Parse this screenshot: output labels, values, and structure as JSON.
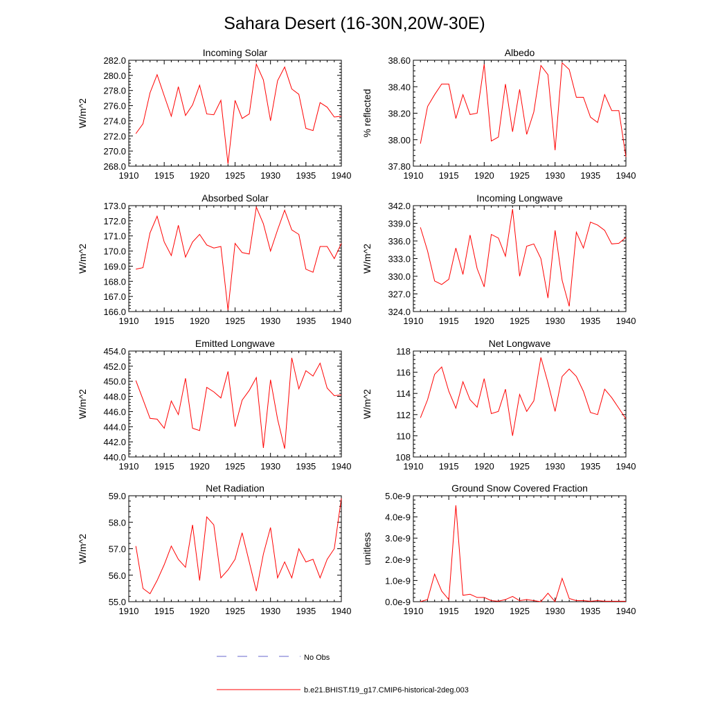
{
  "title": "Sahara Desert (16-30N,20W-30E)",
  "colors": {
    "model": "#ff0000",
    "obs": "#6666cc",
    "axis": "#000000"
  },
  "legend": {
    "obs_label": "No Obs",
    "model_label": "b.e21.BHIST.f19_g17.CMIP6-historical-2deg.003"
  },
  "chart_data": [
    {
      "type": "line",
      "title": "Incoming Solar",
      "ylabel": "W/m^2",
      "xlabel": "",
      "xlim": [
        1910,
        1940
      ],
      "ylim": [
        268.0,
        282.0
      ],
      "xticks": [
        "1910",
        "1915",
        "1920",
        "1925",
        "1930",
        "1935",
        "1940"
      ],
      "yticks": [
        "268.0",
        "270.0",
        "272.0",
        "274.0",
        "276.0",
        "278.0",
        "280.0",
        "282.0"
      ],
      "x": [
        1911,
        1912,
        1913,
        1914,
        1915,
        1916,
        1917,
        1918,
        1919,
        1920,
        1921,
        1922,
        1923,
        1924,
        1925,
        1926,
        1927,
        1928,
        1929,
        1930,
        1931,
        1932,
        1933,
        1934,
        1935,
        1936,
        1937,
        1938,
        1939,
        1940
      ],
      "series": [
        {
          "name": "b.e21.BHIST.f19_g17.CMIP6-historical-2deg.003",
          "values": [
            272.3,
            273.6,
            277.7,
            280.1,
            277.3,
            274.6,
            278.5,
            274.7,
            276.1,
            278.7,
            274.9,
            274.8,
            276.7,
            268.3,
            276.7,
            274.3,
            274.9,
            281.5,
            279.4,
            274.0,
            279.3,
            281.1,
            278.2,
            277.5,
            273.0,
            272.7,
            276.4,
            275.8,
            274.5,
            274.6
          ]
        }
      ]
    },
    {
      "type": "line",
      "title": "Albedo",
      "ylabel": "% reflected",
      "xlabel": "",
      "xlim": [
        1910,
        1940
      ],
      "ylim": [
        37.8,
        38.6
      ],
      "xticks": [
        "1910",
        "1915",
        "1920",
        "1925",
        "1930",
        "1935",
        "1940"
      ],
      "yticks": [
        "37.80",
        "38.00",
        "38.20",
        "38.40",
        "38.60"
      ],
      "x": [
        1911,
        1912,
        1913,
        1914,
        1915,
        1916,
        1917,
        1918,
        1919,
        1920,
        1921,
        1922,
        1923,
        1924,
        1925,
        1926,
        1927,
        1928,
        1929,
        1930,
        1931,
        1932,
        1933,
        1934,
        1935,
        1936,
        1937,
        1938,
        1939,
        1940
      ],
      "series": [
        {
          "name": "b.e21.BHIST.f19_g17.CMIP6-historical-2deg.003",
          "values": [
            37.97,
            38.25,
            38.34,
            38.42,
            38.42,
            38.16,
            38.34,
            38.19,
            38.2,
            38.57,
            37.99,
            38.02,
            38.42,
            38.06,
            38.38,
            38.04,
            38.21,
            38.56,
            38.49,
            37.92,
            38.58,
            38.53,
            38.32,
            38.32,
            38.17,
            38.13,
            38.34,
            38.22,
            38.22,
            37.87
          ]
        }
      ]
    },
    {
      "type": "line",
      "title": "Absorbed Solar",
      "ylabel": "W/m^2",
      "xlabel": "",
      "xlim": [
        1910,
        1940
      ],
      "ylim": [
        166.0,
        173.0
      ],
      "xticks": [
        "1910",
        "1915",
        "1920",
        "1925",
        "1930",
        "1935",
        "1940"
      ],
      "yticks": [
        "166.0",
        "167.0",
        "168.0",
        "169.0",
        "170.0",
        "171.0",
        "172.0",
        "173.0"
      ],
      "x": [
        1911,
        1912,
        1913,
        1914,
        1915,
        1916,
        1917,
        1918,
        1919,
        1920,
        1921,
        1922,
        1923,
        1924,
        1925,
        1926,
        1927,
        1928,
        1929,
        1930,
        1931,
        1932,
        1933,
        1934,
        1935,
        1936,
        1937,
        1938,
        1939,
        1940
      ],
      "series": [
        {
          "name": "b.e21.BHIST.f19_g17.CMIP6-historical-2deg.003",
          "values": [
            168.8,
            168.9,
            171.2,
            172.3,
            170.6,
            169.7,
            171.7,
            169.6,
            170.6,
            171.1,
            170.4,
            170.2,
            170.3,
            166.1,
            170.5,
            169.9,
            169.8,
            172.9,
            171.8,
            170.0,
            171.4,
            172.7,
            171.4,
            171.1,
            168.8,
            168.6,
            170.3,
            170.3,
            169.5,
            170.5
          ]
        }
      ]
    },
    {
      "type": "line",
      "title": "Incoming Longwave",
      "ylabel": "W/m^2",
      "xlabel": "",
      "xlim": [
        1910,
        1940
      ],
      "ylim": [
        324.0,
        342.0
      ],
      "xticks": [
        "1910",
        "1915",
        "1920",
        "1925",
        "1930",
        "1935",
        "1940"
      ],
      "yticks": [
        "324.0",
        "327.0",
        "330.0",
        "333.0",
        "336.0",
        "339.0",
        "342.0"
      ],
      "x": [
        1911,
        1912,
        1913,
        1914,
        1915,
        1916,
        1917,
        1918,
        1919,
        1920,
        1921,
        1922,
        1923,
        1924,
        1925,
        1926,
        1927,
        1928,
        1929,
        1930,
        1931,
        1932,
        1933,
        1934,
        1935,
        1936,
        1937,
        1938,
        1939,
        1940
      ],
      "series": [
        {
          "name": "b.e21.BHIST.f19_g17.CMIP6-historical-2deg.003",
          "values": [
            338.3,
            334.3,
            329.2,
            328.6,
            329.5,
            334.8,
            330.3,
            337.0,
            331.3,
            328.2,
            337.1,
            336.5,
            333.4,
            341.4,
            330.0,
            335.1,
            335.5,
            333.0,
            326.3,
            337.8,
            329.3,
            324.9,
            337.5,
            334.8,
            339.2,
            338.7,
            337.8,
            335.5,
            335.6,
            336.6
          ]
        }
      ]
    },
    {
      "type": "line",
      "title": "Emitted Longwave",
      "ylabel": "W/m^2",
      "xlabel": "",
      "xlim": [
        1910,
        1940
      ],
      "ylim": [
        440.0,
        454.0
      ],
      "xticks": [
        "1910",
        "1915",
        "1920",
        "1925",
        "1930",
        "1935",
        "1940"
      ],
      "yticks": [
        "440.0",
        "442.0",
        "444.0",
        "446.0",
        "448.0",
        "450.0",
        "452.0",
        "454.0"
      ],
      "x": [
        1911,
        1912,
        1913,
        1914,
        1915,
        1916,
        1917,
        1918,
        1919,
        1920,
        1921,
        1922,
        1923,
        1924,
        1925,
        1926,
        1927,
        1928,
        1929,
        1930,
        1931,
        1932,
        1933,
        1934,
        1935,
        1936,
        1937,
        1938,
        1939,
        1940
      ],
      "series": [
        {
          "name": "b.e21.BHIST.f19_g17.CMIP6-historical-2deg.003",
          "values": [
            450.1,
            447.6,
            445.1,
            445.0,
            443.8,
            447.4,
            445.6,
            450.4,
            443.8,
            443.5,
            449.2,
            448.6,
            447.8,
            451.3,
            444.0,
            447.5,
            448.8,
            450.5,
            441.2,
            450.2,
            445.0,
            441.1,
            453.1,
            449.0,
            451.4,
            450.7,
            452.4,
            449.1,
            448.1,
            448.2
          ]
        }
      ]
    },
    {
      "type": "line",
      "title": "Net Longwave",
      "ylabel": "W/m^2",
      "xlabel": "",
      "xlim": [
        1910,
        1940
      ],
      "ylim": [
        108,
        118
      ],
      "xticks": [
        "1910",
        "1915",
        "1920",
        "1925",
        "1930",
        "1935",
        "1940"
      ],
      "yticks": [
        "108",
        "110",
        "112",
        "114",
        "116",
        "118"
      ],
      "x": [
        1911,
        1912,
        1913,
        1914,
        1915,
        1916,
        1917,
        1918,
        1919,
        1920,
        1921,
        1922,
        1923,
        1924,
        1925,
        1926,
        1927,
        1928,
        1929,
        1930,
        1931,
        1932,
        1933,
        1934,
        1935,
        1936,
        1937,
        1938,
        1939,
        1940
      ],
      "series": [
        {
          "name": "b.e21.BHIST.f19_g17.CMIP6-historical-2deg.003",
          "values": [
            111.7,
            113.4,
            115.8,
            116.5,
            114.2,
            112.6,
            115.1,
            113.4,
            112.7,
            115.4,
            112.1,
            112.3,
            114.4,
            110.0,
            113.9,
            112.3,
            113.3,
            117.4,
            115.0,
            112.3,
            115.6,
            116.3,
            115.6,
            114.2,
            112.2,
            112.0,
            114.4,
            113.6,
            112.6,
            111.6
          ]
        }
      ]
    },
    {
      "type": "line",
      "title": "Net Radiation",
      "ylabel": "W/m^2",
      "xlabel": "",
      "xlim": [
        1910,
        1940
      ],
      "ylim": [
        55.0,
        59.0
      ],
      "xticks": [
        "1910",
        "1915",
        "1920",
        "1925",
        "1930",
        "1935",
        "1940"
      ],
      "yticks": [
        "55.0",
        "56.0",
        "57.0",
        "58.0",
        "59.0"
      ],
      "x": [
        1911,
        1912,
        1913,
        1914,
        1915,
        1916,
        1917,
        1918,
        1919,
        1920,
        1921,
        1922,
        1923,
        1924,
        1925,
        1926,
        1927,
        1928,
        1929,
        1930,
        1931,
        1932,
        1933,
        1934,
        1935,
        1936,
        1937,
        1938,
        1939,
        1940
      ],
      "series": [
        {
          "name": "b.e21.BHIST.f19_g17.CMIP6-historical-2deg.003",
          "values": [
            57.1,
            55.5,
            55.3,
            55.8,
            56.4,
            57.1,
            56.6,
            56.3,
            57.9,
            55.8,
            58.2,
            57.9,
            55.9,
            56.2,
            56.6,
            57.6,
            56.5,
            55.4,
            56.8,
            57.8,
            55.9,
            56.5,
            55.9,
            57.0,
            56.5,
            56.6,
            55.9,
            56.6,
            57.0,
            58.9
          ]
        }
      ]
    },
    {
      "type": "line",
      "title": "Ground Snow Covered Fraction",
      "ylabel": "unitless",
      "xlabel": "",
      "xlim": [
        1910,
        1940
      ],
      "ylim": [
        0,
        5e-09
      ],
      "xticks": [
        "1910",
        "1915",
        "1920",
        "1925",
        "1930",
        "1935",
        "1940"
      ],
      "yticks": [
        "0.0e-9",
        "1.0e-9",
        "2.0e-9",
        "3.0e-9",
        "4.0e-9",
        "5.0e-9"
      ],
      "x": [
        1911,
        1912,
        1913,
        1914,
        1915,
        1916,
        1917,
        1918,
        1919,
        1920,
        1921,
        1922,
        1923,
        1924,
        1925,
        1926,
        1927,
        1928,
        1929,
        1930,
        1931,
        1932,
        1933,
        1934,
        1935,
        1936,
        1937,
        1938,
        1939,
        1940
      ],
      "series": [
        {
          "name": "b.e21.BHIST.f19_g17.CMIP6-historical-2deg.003",
          "values": [
            0.0,
            1e-10,
            1.3e-09,
            5e-10,
            1e-10,
            4.55e-09,
            3e-10,
            3.5e-10,
            2e-10,
            2e-10,
            5e-11,
            2e-11,
            1e-10,
            2.5e-10,
            5e-11,
            1e-10,
            5e-11,
            0.0,
            4e-10,
            0.0,
            1.1e-09,
            1.5e-10,
            5e-11,
            5e-11,
            2e-11,
            5e-11,
            2e-11,
            2e-11,
            2e-11,
            2e-11
          ]
        }
      ]
    }
  ]
}
